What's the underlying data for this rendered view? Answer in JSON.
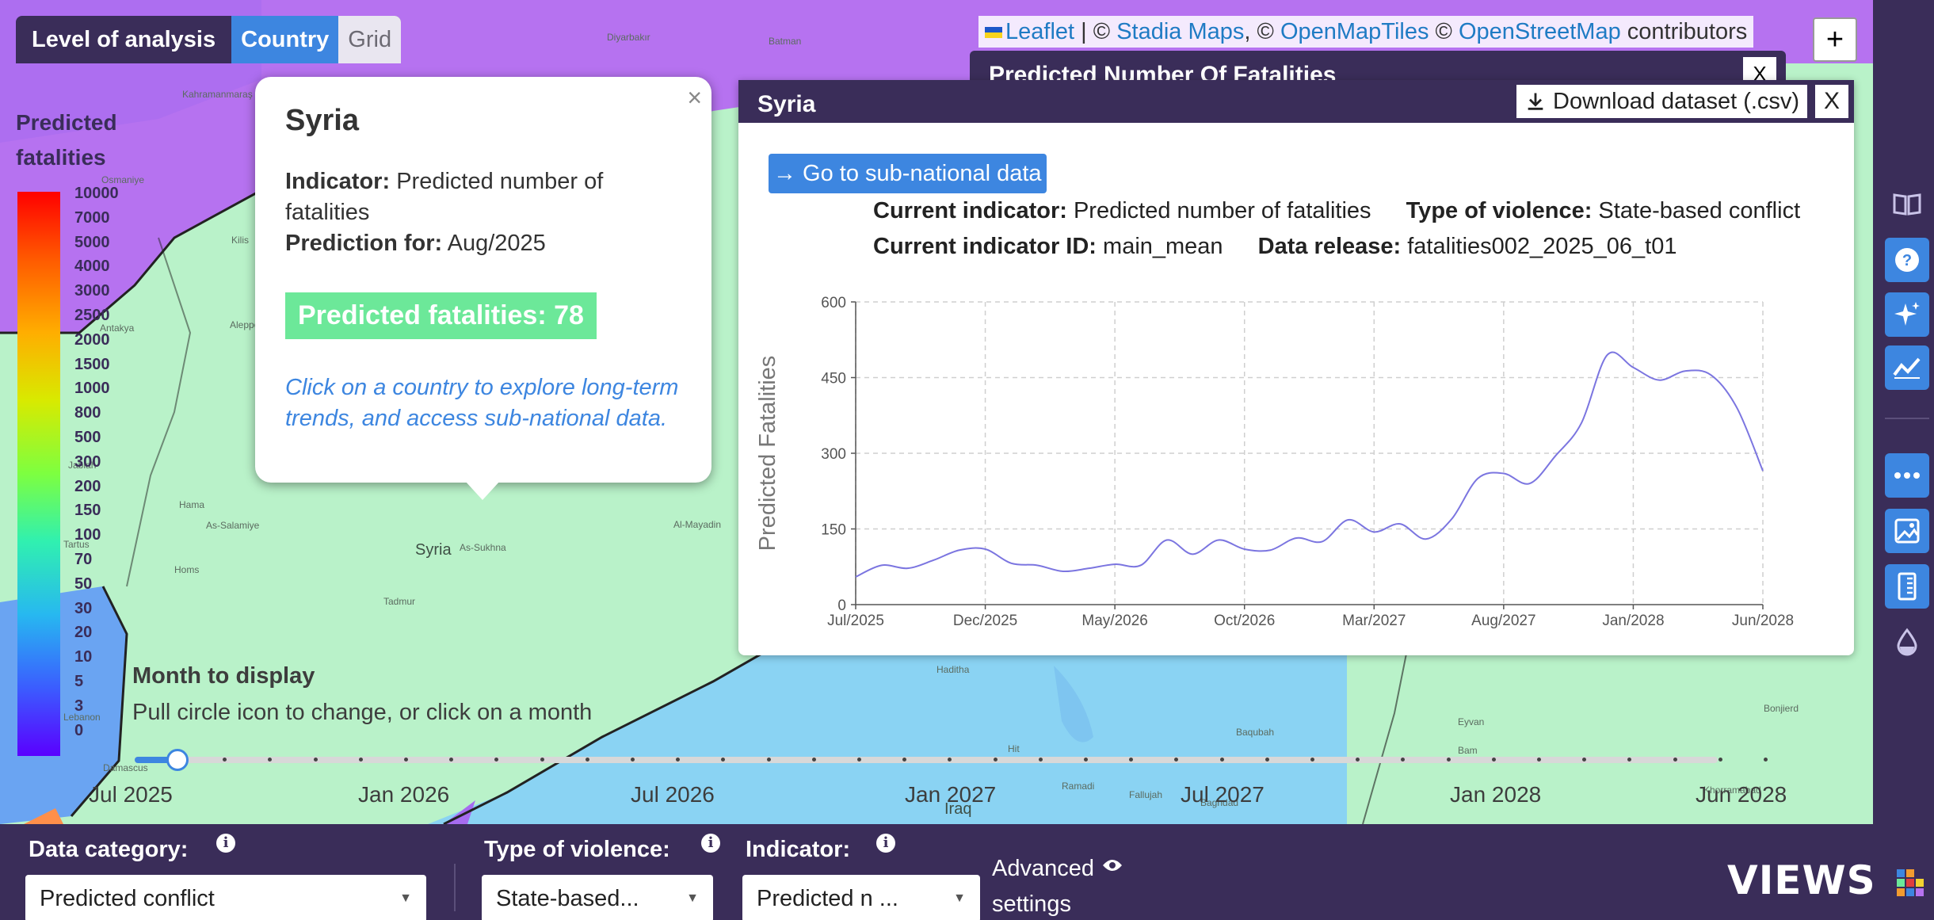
{
  "level": {
    "label": "Level of analysis",
    "options": [
      "Country",
      "Grid"
    ],
    "active": "Country"
  },
  "legend": {
    "title": "Predicted fatalities",
    "ticks": [
      "10000",
      "7000",
      "5000",
      "4000",
      "3000",
      "2500",
      "2000",
      "1500",
      "1000",
      "800",
      "500",
      "300",
      "200",
      "150",
      "100",
      "70",
      "50",
      "30",
      "20",
      "10",
      "5",
      "3",
      "0"
    ]
  },
  "attribution": {
    "leaflet": "Leaflet",
    "sep1": "|",
    "copy": "©",
    "stadia": "Stadia Maps",
    "comma": ",",
    "omt": "OpenMapTiles",
    "osm": "OpenStreetMap",
    "contrib": "contributors"
  },
  "zoom": {
    "in": "+"
  },
  "popup": {
    "close": "×",
    "country": "Syria",
    "indicator_label": "Indicator:",
    "indicator_value": "Predicted number of fatalities",
    "prediction_label": "Prediction for:",
    "prediction_value": "Aug/2025",
    "predicted_fatalities": "Predicted fatalities: 78",
    "hint": "Click on a country to explore long-term trends, and access sub-national data."
  },
  "background_panel": {
    "title": "Predicted Number Of Fatalities",
    "close": "X"
  },
  "panel": {
    "title": "Syria",
    "download": "Download dataset (.csv)",
    "close": "X",
    "go_button": "→ Go to sub-national data",
    "current_indicator_label": "Current indicator:",
    "current_indicator_value": "Predicted number of fatalities",
    "violence_label": "Type of violence:",
    "violence_value": "State-based conflict",
    "indicator_id_label": "Current indicator ID:",
    "indicator_id_value": "main_mean",
    "release_label": "Data release:",
    "release_value": "fatalities002_2025_06_t01"
  },
  "chart_data": {
    "type": "line",
    "ylabel": "Predicted Fatalities",
    "xlabel": "",
    "ylim": [
      0,
      600
    ],
    "yticks": [
      "0",
      "150",
      "300",
      "450",
      "600"
    ],
    "xticks": [
      "Jul/2025",
      "Dec/2025",
      "May/2026",
      "Oct/2026",
      "Mar/2027",
      "Aug/2027",
      "Jan/2028",
      "Jun/2028"
    ],
    "grid": true,
    "series": [
      {
        "color": "#7b75e0",
        "x": [
          "2025-07",
          "2025-08",
          "2025-09",
          "2025-10",
          "2025-11",
          "2025-12",
          "2026-01",
          "2026-02",
          "2026-03",
          "2026-04",
          "2026-05",
          "2026-06",
          "2026-07",
          "2026-08",
          "2026-09",
          "2026-10",
          "2026-11",
          "2026-12",
          "2027-01",
          "2027-02",
          "2027-03",
          "2027-04",
          "2027-05",
          "2027-06",
          "2027-07",
          "2027-08",
          "2027-09",
          "2027-10",
          "2027-11",
          "2027-12",
          "2028-01",
          "2028-02",
          "2028-03",
          "2028-04",
          "2028-05",
          "2028-06"
        ],
        "values": [
          55,
          78,
          72,
          88,
          108,
          110,
          82,
          78,
          66,
          72,
          80,
          78,
          128,
          100,
          128,
          110,
          108,
          132,
          125,
          168,
          144,
          160,
          130,
          170,
          250,
          260,
          240,
          295,
          360,
          495,
          470,
          445,
          463,
          455,
          390,
          265
        ]
      }
    ]
  },
  "timeline": {
    "title": "Month to display",
    "subtitle": "Pull circle icon to change, or click on a month",
    "labels": [
      "Jul 2025",
      "Jan 2026",
      "Jul 2026",
      "Jan 2027",
      "Jul 2027",
      "Jan 2028",
      "Jun 2028"
    ],
    "selected": "Aug 2025"
  },
  "map_labels": [
    "Diyarbakır",
    "Batman",
    "Kahramanmaraş",
    "Osmaniye",
    "Kilis",
    "Aleppo",
    "Antakya",
    "Hama",
    "As-Salamiye",
    "Homs",
    "Tadmur",
    "Syria",
    "As-Sukhna",
    "Al-Mayadin",
    "Tartus",
    "Damascus",
    "Lebanon",
    "Haditha",
    "Hit",
    "Ramadi",
    "Fallujah",
    "Baghdad",
    "Iraq",
    "Baqubah",
    "Bam",
    "Eyvan",
    "Bonjierd",
    "Khorramabad",
    "Jablah"
  ],
  "bottom": {
    "data_category_label": "Data category:",
    "data_category_value": "Predicted conflict",
    "violence_label": "Type of violence:",
    "violence_value": "State-based...",
    "indicator_label": "Indicator:",
    "indicator_value": "Predicted n ...",
    "advanced": "Advanced settings",
    "logo": "VIEWS",
    "info_glyph": "i",
    "caret": "▼"
  },
  "colors": {
    "accent": "#3d86e0",
    "header": "#3a2d59",
    "line": "#7b75e0",
    "badge": "#6ce899"
  }
}
